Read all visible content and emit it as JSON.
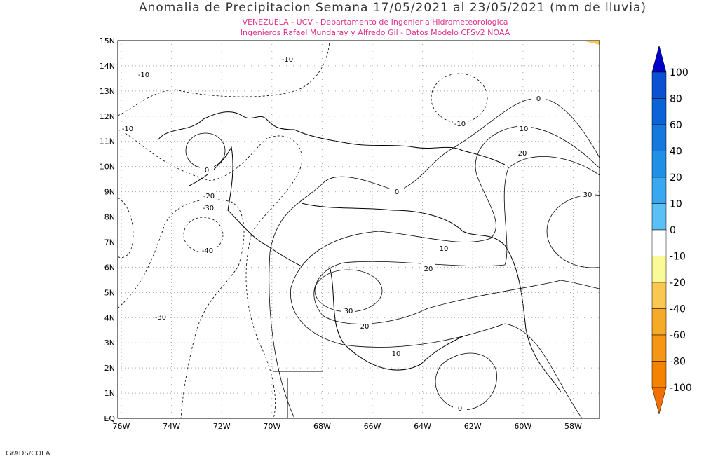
{
  "title": "Anomalia de Precipitacion Semana 17/05/2021 al 23/05/2021 (mm de lluvia)",
  "subtitle": [
    "VENEZUELA - UCV - Departamento de Ingenieria Hidrometeorologica",
    "Ingenieros Rafael Mundaray y Alfredo Gil - Datos Modelo CFSv2 NOAA"
  ],
  "lat_labels": [
    "15N",
    "14N",
    "13N",
    "12N",
    "11N",
    "10N",
    "9N",
    "8N",
    "7N",
    "6N",
    "5N",
    "4N",
    "3N",
    "2N",
    "1N",
    "EQ"
  ],
  "lon_labels": [
    "76W",
    "74W",
    "72W",
    "70W",
    "68W",
    "66W",
    "64W",
    "62W",
    "60W",
    "58W"
  ],
  "colorbar": {
    "labels": [
      "100",
      "80",
      "60",
      "40",
      "20",
      "10",
      "0",
      "-10",
      "-20",
      "-40",
      "-60",
      "-80",
      "-100"
    ],
    "colors": [
      "#0000c8",
      "#0a50d2",
      "#0a64d8",
      "#1478dc",
      "#1e90e6",
      "#38a8f0",
      "#5ac0f5",
      "#ffffff",
      "#fafa96",
      "#fac850",
      "#f5aa28",
      "#f59614",
      "#f58200",
      "#f56e00"
    ]
  },
  "contour_labels": [
    "-10",
    "-10",
    "-10",
    "-10",
    "0",
    "10",
    "20",
    "0",
    "-20",
    "-30",
    "-40",
    "0",
    "30",
    "10",
    "20",
    "30",
    "20",
    "-30",
    "10",
    "0"
  ],
  "footer": "GrADS/COLA"
}
